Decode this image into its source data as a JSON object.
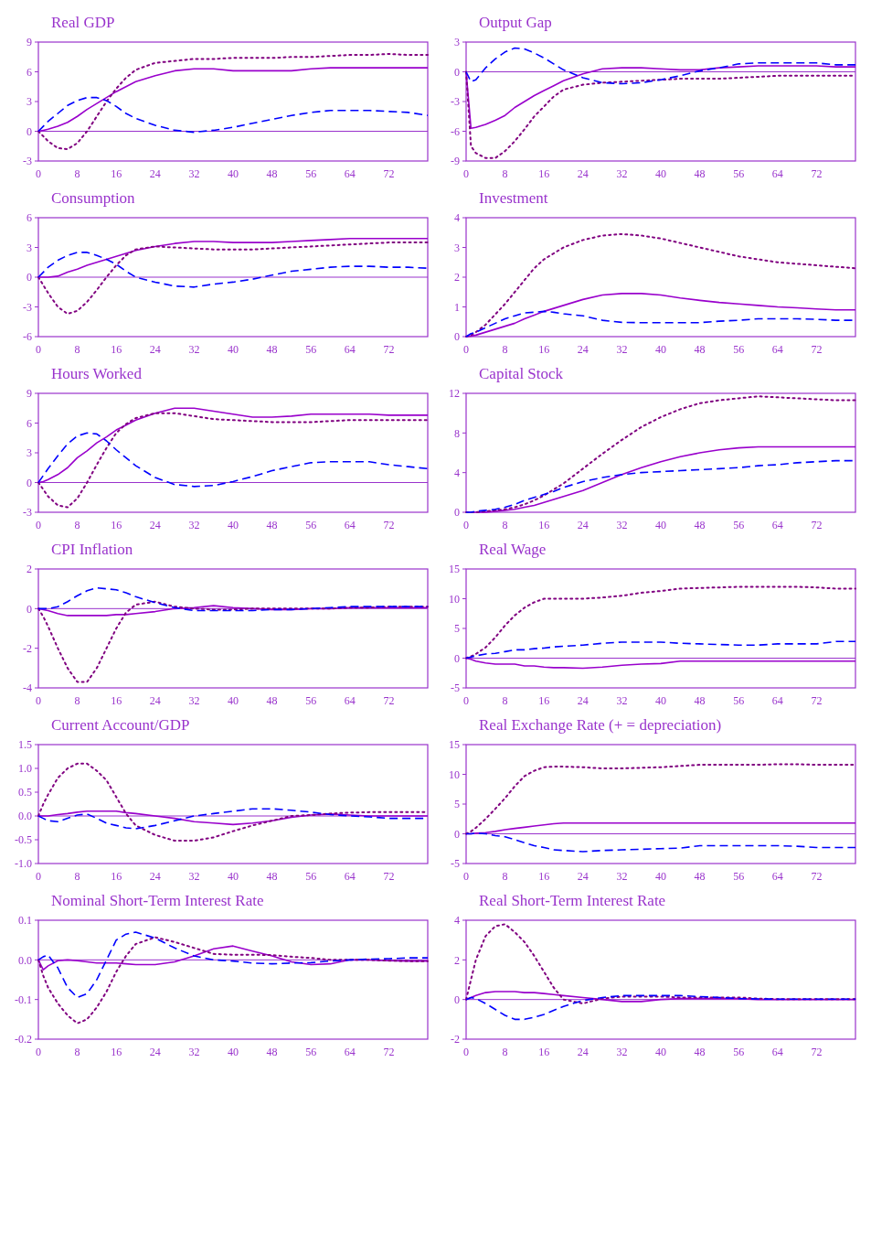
{
  "chart_data": [
    {
      "type": "line",
      "title": "Real GDP",
      "x": [
        0,
        1,
        2,
        4,
        6,
        8,
        10,
        12,
        14,
        16,
        18,
        20,
        24,
        28,
        32,
        36,
        40,
        44,
        48,
        52,
        56,
        60,
        64,
        68,
        72,
        76,
        80
      ],
      "xlim": [
        0,
        80
      ],
      "xticks": [
        0,
        8,
        16,
        24,
        32,
        40,
        48,
        56,
        64,
        72
      ],
      "ylim": [
        -3,
        9
      ],
      "yticks": [
        -3,
        0,
        3,
        6,
        9
      ],
      "ref_lines": [
        {
          "axis": "y",
          "value": 0
        }
      ],
      "series": [
        {
          "color": "#9900cc",
          "line_style": "solid",
          "values": [
            0,
            0.1,
            0.2,
            0.5,
            0.9,
            1.5,
            2.2,
            2.8,
            3.4,
            4.0,
            4.5,
            5.0,
            5.6,
            6.1,
            6.3,
            6.3,
            6.1,
            6.1,
            6.1,
            6.1,
            6.3,
            6.4,
            6.4,
            6.4,
            6.4,
            6.4,
            6.4
          ]
        },
        {
          "color": "#800080",
          "line_style": "dotted",
          "values": [
            0,
            -0.5,
            -1.0,
            -1.7,
            -1.8,
            -1.2,
            0,
            1.5,
            3.0,
            4.3,
            5.4,
            6.2,
            6.9,
            7.1,
            7.3,
            7.3,
            7.4,
            7.4,
            7.4,
            7.5,
            7.5,
            7.6,
            7.7,
            7.7,
            7.8,
            7.7,
            7.7
          ]
        },
        {
          "color": "#0000ff",
          "line_style": "dashed",
          "values": [
            0,
            0.5,
            1.0,
            1.8,
            2.6,
            3.1,
            3.4,
            3.4,
            3.1,
            2.5,
            1.8,
            1.3,
            0.6,
            0.1,
            -0.1,
            0.1,
            0.4,
            0.8,
            1.2,
            1.6,
            1.9,
            2.1,
            2.1,
            2.1,
            2.0,
            1.9,
            1.6
          ]
        }
      ]
    },
    {
      "type": "line",
      "title": "Output Gap",
      "x": [
        0,
        1,
        2,
        4,
        6,
        8,
        10,
        12,
        14,
        16,
        18,
        20,
        24,
        28,
        32,
        36,
        40,
        44,
        48,
        52,
        56,
        60,
        64,
        68,
        72,
        76,
        80
      ],
      "xlim": [
        0,
        80
      ],
      "xticks": [
        0,
        8,
        16,
        24,
        32,
        40,
        48,
        56,
        64,
        72
      ],
      "ylim": [
        -9,
        3
      ],
      "yticks": [
        -9,
        -6,
        -3,
        0,
        3
      ],
      "ref_lines": [
        {
          "axis": "y",
          "value": 0
        }
      ],
      "series": [
        {
          "color": "#9900cc",
          "line_style": "solid",
          "values": [
            0,
            -5.7,
            -5.6,
            -5.3,
            -4.9,
            -4.4,
            -3.6,
            -3.0,
            -2.4,
            -1.9,
            -1.4,
            -0.9,
            -0.2,
            0.3,
            0.4,
            0.4,
            0.3,
            0.2,
            0.2,
            0.4,
            0.5,
            0.6,
            0.6,
            0.6,
            0.6,
            0.5,
            0.5
          ]
        },
        {
          "color": "#800080",
          "line_style": "dotted",
          "values": [
            0,
            -7.5,
            -8.2,
            -8.7,
            -8.7,
            -8.0,
            -7.0,
            -5.8,
            -4.5,
            -3.5,
            -2.5,
            -1.8,
            -1.3,
            -1.1,
            -1.0,
            -0.9,
            -0.8,
            -0.7,
            -0.7,
            -0.7,
            -0.6,
            -0.5,
            -0.4,
            -0.4,
            -0.4,
            -0.4,
            -0.4
          ]
        },
        {
          "color": "#0000ff",
          "line_style": "dashed",
          "values": [
            0,
            -1.0,
            -0.8,
            0.4,
            1.3,
            2.0,
            2.4,
            2.3,
            1.9,
            1.4,
            0.8,
            0.2,
            -0.6,
            -1.1,
            -1.2,
            -1.1,
            -0.8,
            -0.4,
            0.1,
            0.4,
            0.8,
            0.9,
            0.9,
            0.9,
            0.9,
            0.7,
            0.7
          ]
        }
      ]
    },
    {
      "type": "line",
      "title": "Consumption",
      "x": [
        0,
        1,
        2,
        4,
        6,
        8,
        10,
        12,
        14,
        16,
        18,
        20,
        24,
        28,
        32,
        36,
        40,
        44,
        48,
        52,
        56,
        60,
        64,
        68,
        72,
        76,
        80
      ],
      "xlim": [
        0,
        80
      ],
      "xticks": [
        0,
        8,
        16,
        24,
        32,
        40,
        48,
        56,
        64,
        72
      ],
      "ylim": [
        -6,
        6
      ],
      "yticks": [
        -6,
        -3,
        0,
        3,
        6
      ],
      "ref_lines": [
        {
          "axis": "y",
          "value": 0
        }
      ],
      "series": [
        {
          "color": "#9900cc",
          "line_style": "solid",
          "values": [
            0,
            0,
            0,
            0.1,
            0.5,
            0.8,
            1.2,
            1.5,
            1.8,
            2.1,
            2.4,
            2.7,
            3.1,
            3.4,
            3.6,
            3.6,
            3.5,
            3.5,
            3.5,
            3.6,
            3.7,
            3.8,
            3.9,
            3.9,
            3.9,
            3.9,
            3.9
          ]
        },
        {
          "color": "#800080",
          "line_style": "dotted",
          "values": [
            0,
            -0.8,
            -1.6,
            -3.0,
            -3.7,
            -3.4,
            -2.5,
            -1.3,
            0,
            1.2,
            2.2,
            2.8,
            3.1,
            3.0,
            2.9,
            2.8,
            2.8,
            2.8,
            2.9,
            3.0,
            3.1,
            3.2,
            3.3,
            3.4,
            3.5,
            3.5,
            3.5
          ]
        },
        {
          "color": "#0000ff",
          "line_style": "dashed",
          "values": [
            0,
            0.5,
            1.0,
            1.7,
            2.2,
            2.5,
            2.5,
            2.2,
            1.8,
            1.3,
            0.6,
            0,
            -0.5,
            -0.9,
            -1.0,
            -0.7,
            -0.5,
            -0.2,
            0.2,
            0.6,
            0.8,
            1.0,
            1.1,
            1.1,
            1.0,
            1.0,
            0.9
          ]
        }
      ]
    },
    {
      "type": "line",
      "title": "Investment",
      "x": [
        0,
        1,
        2,
        4,
        6,
        8,
        10,
        12,
        14,
        16,
        18,
        20,
        24,
        28,
        32,
        36,
        40,
        44,
        48,
        52,
        56,
        60,
        64,
        68,
        72,
        76,
        80
      ],
      "xlim": [
        0,
        80
      ],
      "xticks": [
        0,
        8,
        16,
        24,
        32,
        40,
        48,
        56,
        64,
        72
      ],
      "ylim": [
        0,
        4
      ],
      "yticks": [
        0,
        1,
        2,
        3,
        4
      ],
      "series": [
        {
          "color": "#9900cc",
          "line_style": "solid",
          "values": [
            0,
            0.02,
            0.05,
            0.15,
            0.25,
            0.35,
            0.45,
            0.6,
            0.72,
            0.85,
            0.95,
            1.05,
            1.25,
            1.4,
            1.45,
            1.45,
            1.4,
            1.3,
            1.22,
            1.15,
            1.1,
            1.05,
            1.0,
            0.97,
            0.93,
            0.9,
            0.9
          ]
        },
        {
          "color": "#800080",
          "line_style": "dotted",
          "values": [
            0,
            0.05,
            0.15,
            0.4,
            0.75,
            1.1,
            1.5,
            1.9,
            2.3,
            2.6,
            2.8,
            3.0,
            3.25,
            3.4,
            3.45,
            3.4,
            3.3,
            3.15,
            3.0,
            2.85,
            2.7,
            2.6,
            2.5,
            2.45,
            2.4,
            2.35,
            2.3
          ]
        },
        {
          "color": "#0000ff",
          "line_style": "dashed",
          "values": [
            0,
            0.1,
            0.15,
            0.3,
            0.45,
            0.6,
            0.7,
            0.8,
            0.82,
            0.85,
            0.82,
            0.77,
            0.7,
            0.55,
            0.48,
            0.47,
            0.47,
            0.47,
            0.47,
            0.52,
            0.55,
            0.6,
            0.6,
            0.6,
            0.58,
            0.55,
            0.55
          ]
        }
      ]
    },
    {
      "type": "line",
      "title": "Hours Worked",
      "x": [
        0,
        1,
        2,
        4,
        6,
        8,
        10,
        12,
        14,
        16,
        18,
        20,
        24,
        28,
        32,
        36,
        40,
        44,
        48,
        52,
        56,
        60,
        64,
        68,
        72,
        76,
        80
      ],
      "xlim": [
        0,
        80
      ],
      "xticks": [
        0,
        8,
        16,
        24,
        32,
        40,
        48,
        56,
        64,
        72
      ],
      "ylim": [
        -3,
        9
      ],
      "yticks": [
        -3,
        0,
        3,
        6,
        9
      ],
      "ref_lines": [
        {
          "axis": "y",
          "value": 0
        }
      ],
      "series": [
        {
          "color": "#9900cc",
          "line_style": "solid",
          "values": [
            0,
            0.1,
            0.3,
            0.8,
            1.5,
            2.5,
            3.2,
            4.0,
            4.6,
            5.3,
            5.8,
            6.3,
            7.0,
            7.5,
            7.5,
            7.2,
            6.9,
            6.6,
            6.6,
            6.7,
            6.9,
            6.9,
            6.9,
            6.9,
            6.8,
            6.8,
            6.8
          ]
        },
        {
          "color": "#800080",
          "line_style": "dotted",
          "values": [
            0,
            -0.7,
            -1.4,
            -2.3,
            -2.5,
            -1.6,
            0,
            1.8,
            3.5,
            5.0,
            5.9,
            6.5,
            7.0,
            7.0,
            6.7,
            6.4,
            6.3,
            6.2,
            6.1,
            6.1,
            6.1,
            6.2,
            6.3,
            6.3,
            6.3,
            6.3,
            6.3
          ]
        },
        {
          "color": "#0000ff",
          "line_style": "dashed",
          "values": [
            0,
            0.7,
            1.4,
            2.7,
            3.9,
            4.7,
            5.0,
            4.9,
            4.2,
            3.3,
            2.5,
            1.7,
            0.5,
            -0.2,
            -0.4,
            -0.3,
            0.1,
            0.6,
            1.2,
            1.6,
            2.0,
            2.1,
            2.1,
            2.1,
            1.8,
            1.6,
            1.4
          ]
        }
      ]
    },
    {
      "type": "line",
      "title": "Capital Stock",
      "x": [
        0,
        1,
        2,
        4,
        6,
        8,
        10,
        12,
        14,
        16,
        18,
        20,
        24,
        28,
        32,
        36,
        40,
        44,
        48,
        52,
        56,
        60,
        64,
        68,
        72,
        76,
        80
      ],
      "xlim": [
        0,
        80
      ],
      "xticks": [
        0,
        8,
        16,
        24,
        32,
        40,
        48,
        56,
        64,
        72
      ],
      "ylim": [
        0,
        12
      ],
      "yticks": [
        0,
        4,
        8,
        12
      ],
      "series": [
        {
          "color": "#9900cc",
          "line_style": "solid",
          "values": [
            0,
            0,
            0,
            0,
            0.1,
            0.2,
            0.3,
            0.5,
            0.7,
            1.0,
            1.3,
            1.6,
            2.2,
            3.0,
            3.8,
            4.5,
            5.1,
            5.6,
            6.0,
            6.3,
            6.5,
            6.6,
            6.6,
            6.6,
            6.6,
            6.6,
            6.6
          ]
        },
        {
          "color": "#800080",
          "line_style": "dotted",
          "values": [
            0,
            0,
            0,
            0.1,
            0.2,
            0.3,
            0.5,
            0.8,
            1.2,
            1.7,
            2.3,
            2.9,
            4.4,
            5.9,
            7.3,
            8.6,
            9.6,
            10.4,
            11.0,
            11.3,
            11.5,
            11.7,
            11.6,
            11.5,
            11.4,
            11.3,
            11.3
          ]
        },
        {
          "color": "#0000ff",
          "line_style": "dashed",
          "values": [
            0,
            0,
            0.1,
            0.2,
            0.3,
            0.5,
            0.8,
            1.2,
            1.5,
            1.8,
            2.1,
            2.5,
            3.1,
            3.5,
            3.8,
            4.0,
            4.1,
            4.2,
            4.3,
            4.4,
            4.5,
            4.7,
            4.8,
            5.0,
            5.1,
            5.2,
            5.2
          ]
        }
      ]
    },
    {
      "type": "line",
      "title": "CPI Inflation",
      "x": [
        0,
        1,
        2,
        4,
        6,
        8,
        10,
        12,
        14,
        16,
        18,
        20,
        24,
        28,
        32,
        36,
        40,
        44,
        48,
        52,
        56,
        60,
        64,
        68,
        72,
        76,
        80
      ],
      "xlim": [
        0,
        80
      ],
      "xticks": [
        0,
        8,
        16,
        24,
        32,
        40,
        48,
        56,
        64,
        72
      ],
      "ylim": [
        -4,
        2
      ],
      "yticks": [
        -4,
        -2,
        0,
        2
      ],
      "ref_lines": [
        {
          "axis": "y",
          "value": 0
        }
      ],
      "series": [
        {
          "color": "#9900cc",
          "line_style": "solid",
          "values": [
            0,
            -0.05,
            -0.1,
            -0.25,
            -0.35,
            -0.35,
            -0.35,
            -0.35,
            -0.35,
            -0.3,
            -0.3,
            -0.25,
            -0.15,
            0,
            0.05,
            0.15,
            0.05,
            0,
            -0.05,
            -0.05,
            0,
            0,
            0.05,
            0.05,
            0.05,
            0.05,
            0.05
          ]
        },
        {
          "color": "#800080",
          "line_style": "dotted",
          "values": [
            0,
            -0.4,
            -0.9,
            -2.0,
            -3.0,
            -3.7,
            -3.7,
            -3.0,
            -2.0,
            -1.0,
            -0.2,
            0.2,
            0.35,
            0.1,
            0,
            -0.05,
            -0.05,
            0,
            0,
            0,
            0,
            0,
            0.05,
            0.05,
            0.1,
            0.1,
            0.1
          ]
        },
        {
          "color": "#0000ff",
          "line_style": "dashed",
          "values": [
            0,
            0,
            0,
            0.1,
            0.35,
            0.65,
            0.9,
            1.05,
            1.0,
            0.95,
            0.8,
            0.6,
            0.3,
            0.05,
            -0.1,
            -0.1,
            -0.1,
            -0.1,
            -0.05,
            -0.05,
            0,
            0.05,
            0.1,
            0.1,
            0.1,
            0.1,
            0.1
          ]
        }
      ]
    },
    {
      "type": "line",
      "title": "Real Wage",
      "x": [
        0,
        1,
        2,
        4,
        6,
        8,
        10,
        12,
        14,
        16,
        18,
        20,
        24,
        28,
        32,
        36,
        40,
        44,
        48,
        52,
        56,
        60,
        64,
        68,
        72,
        76,
        80
      ],
      "xlim": [
        0,
        80
      ],
      "xticks": [
        0,
        8,
        16,
        24,
        32,
        40,
        48,
        56,
        64,
        72
      ],
      "ylim": [
        -5,
        15
      ],
      "yticks": [
        -5,
        0,
        5,
        10,
        15
      ],
      "ref_lines": [
        {
          "axis": "y",
          "value": 0
        }
      ],
      "series": [
        {
          "color": "#9900cc",
          "line_style": "solid",
          "values": [
            0,
            -0.2,
            -0.5,
            -0.8,
            -1.0,
            -1.0,
            -1.0,
            -1.3,
            -1.3,
            -1.5,
            -1.6,
            -1.6,
            -1.7,
            -1.5,
            -1.2,
            -1.0,
            -0.9,
            -0.5,
            -0.5,
            -0.5,
            -0.5,
            -0.5,
            -0.5,
            -0.5,
            -0.5,
            -0.5,
            -0.5
          ]
        },
        {
          "color": "#800080",
          "line_style": "dotted",
          "values": [
            0,
            0.3,
            0.7,
            1.8,
            3.5,
            5.5,
            7.2,
            8.5,
            9.4,
            10.0,
            10.0,
            10.0,
            10.0,
            10.2,
            10.5,
            11.0,
            11.3,
            11.7,
            11.8,
            11.9,
            12.0,
            12.0,
            12.0,
            12.0,
            11.9,
            11.7,
            11.7
          ]
        },
        {
          "color": "#0000ff",
          "line_style": "dashed",
          "values": [
            0,
            0.2,
            0.4,
            0.7,
            0.8,
            1.1,
            1.4,
            1.4,
            1.6,
            1.7,
            1.9,
            2.0,
            2.2,
            2.5,
            2.7,
            2.7,
            2.7,
            2.5,
            2.4,
            2.3,
            2.2,
            2.2,
            2.4,
            2.4,
            2.4,
            2.8,
            2.8
          ]
        }
      ]
    },
    {
      "type": "line",
      "title": "Current Account/GDP",
      "x": [
        0,
        1,
        2,
        4,
        6,
        8,
        10,
        12,
        14,
        16,
        18,
        20,
        24,
        28,
        32,
        36,
        40,
        44,
        48,
        52,
        56,
        60,
        64,
        68,
        72,
        76,
        80
      ],
      "xlim": [
        0,
        80
      ],
      "xticks": [
        0,
        8,
        16,
        24,
        32,
        40,
        48,
        56,
        64,
        72
      ],
      "ylim": [
        -1,
        1.5
      ],
      "yticks": [
        {
          "value": -1,
          "label": "-1.0"
        },
        -0.5,
        {
          "value": 0,
          "label": "0.0"
        },
        0.5,
        {
          "value": 1,
          "label": "1.0"
        },
        1.5
      ],
      "ref_lines": [
        {
          "axis": "y",
          "value": 0
        }
      ],
      "series": [
        {
          "color": "#9900cc",
          "line_style": "solid",
          "values": [
            0,
            0,
            0,
            0.03,
            0.05,
            0.08,
            0.1,
            0.1,
            0.1,
            0.1,
            0.07,
            0.05,
            0,
            -0.05,
            -0.12,
            -0.15,
            -0.18,
            -0.15,
            -0.1,
            -0.03,
            0.02,
            0.04,
            0.02,
            0,
            0,
            0,
            0
          ]
        },
        {
          "color": "#800080",
          "line_style": "dotted",
          "values": [
            0,
            0.25,
            0.45,
            0.8,
            1.0,
            1.1,
            1.1,
            0.95,
            0.75,
            0.4,
            0.05,
            -0.2,
            -0.4,
            -0.52,
            -0.52,
            -0.45,
            -0.32,
            -0.2,
            -0.1,
            0,
            0.02,
            0.05,
            0.07,
            0.08,
            0.08,
            0.08,
            0.08
          ]
        },
        {
          "color": "#0000ff",
          "line_style": "dashed",
          "values": [
            0,
            -0.05,
            -0.1,
            -0.12,
            -0.05,
            0.02,
            0.04,
            -0.05,
            -0.15,
            -0.2,
            -0.25,
            -0.27,
            -0.2,
            -0.1,
            0,
            0.05,
            0.1,
            0.15,
            0.15,
            0.12,
            0.08,
            0.03,
            0,
            -0.02,
            -0.05,
            -0.05,
            -0.05
          ]
        }
      ]
    },
    {
      "type": "line",
      "title": "Real Exchange Rate (+ = depreciation)",
      "x": [
        0,
        1,
        2,
        4,
        6,
        8,
        10,
        12,
        14,
        16,
        18,
        20,
        24,
        28,
        32,
        36,
        40,
        44,
        48,
        52,
        56,
        60,
        64,
        68,
        72,
        76,
        80
      ],
      "xlim": [
        0,
        80
      ],
      "xticks": [
        0,
        8,
        16,
        24,
        32,
        40,
        48,
        56,
        64,
        72
      ],
      "ylim": [
        -5,
        15
      ],
      "yticks": [
        -5,
        0,
        5,
        10,
        15
      ],
      "ref_lines": [
        {
          "axis": "y",
          "value": 0
        }
      ],
      "series": [
        {
          "color": "#9900cc",
          "line_style": "solid",
          "values": [
            0,
            0,
            0.1,
            0.2,
            0.4,
            0.7,
            0.9,
            1.1,
            1.3,
            1.5,
            1.7,
            1.8,
            1.8,
            1.8,
            1.8,
            1.8,
            1.8,
            1.8,
            1.8,
            1.8,
            1.8,
            1.8,
            1.8,
            1.8,
            1.8,
            1.8,
            1.8
          ]
        },
        {
          "color": "#800080",
          "line_style": "dotted",
          "values": [
            0,
            0.4,
            1.0,
            2.5,
            4.2,
            6.0,
            8.0,
            9.7,
            10.6,
            11.2,
            11.3,
            11.3,
            11.2,
            11.0,
            11.0,
            11.1,
            11.2,
            11.4,
            11.6,
            11.6,
            11.6,
            11.6,
            11.7,
            11.7,
            11.6,
            11.6,
            11.6
          ]
        },
        {
          "color": "#0000ff",
          "line_style": "dashed",
          "values": [
            0,
            0,
            0.1,
            0,
            -0.3,
            -0.5,
            -1.0,
            -1.5,
            -2.0,
            -2.3,
            -2.7,
            -2.8,
            -3.0,
            -2.8,
            -2.7,
            -2.6,
            -2.5,
            -2.4,
            -2.0,
            -2.0,
            -2.0,
            -2.0,
            -2.0,
            -2.1,
            -2.3,
            -2.3,
            -2.3
          ]
        }
      ]
    },
    {
      "type": "line",
      "title": "Nominal Short-Term Interest Rate",
      "x": [
        0,
        1,
        2,
        4,
        6,
        8,
        10,
        12,
        14,
        16,
        18,
        20,
        24,
        28,
        32,
        36,
        40,
        44,
        48,
        52,
        56,
        60,
        64,
        68,
        72,
        76,
        80
      ],
      "xlim": [
        0,
        80
      ],
      "xticks": [
        0,
        8,
        16,
        24,
        32,
        40,
        48,
        56,
        64,
        72
      ],
      "ylim": [
        -0.2,
        0.1
      ],
      "yticks": [
        -0.2,
        -0.1,
        {
          "value": 0,
          "label": "0.0"
        },
        0.1
      ],
      "ref_lines": [
        {
          "axis": "y",
          "value": 0
        }
      ],
      "series": [
        {
          "color": "#9900cc",
          "line_style": "solid",
          "values": [
            0,
            -0.025,
            -0.015,
            -0.002,
            0,
            -0.002,
            -0.005,
            -0.008,
            -0.008,
            -0.008,
            -0.01,
            -0.012,
            -0.012,
            -0.005,
            0.01,
            0.028,
            0.035,
            0.022,
            0.01,
            -0.005,
            -0.012,
            -0.01,
            0,
            0,
            -0.002,
            -0.003,
            -0.003
          ]
        },
        {
          "color": "#800080",
          "line_style": "dotted",
          "values": [
            0,
            -0.04,
            -0.07,
            -0.11,
            -0.14,
            -0.16,
            -0.15,
            -0.12,
            -0.08,
            -0.03,
            0.01,
            0.04,
            0.057,
            0.045,
            0.03,
            0.015,
            0.013,
            0.013,
            0.012,
            0.008,
            0.005,
            0,
            0,
            0,
            -0.002,
            -0.003,
            -0.003
          ]
        },
        {
          "color": "#0000ff",
          "line_style": "dashed",
          "values": [
            0,
            0.008,
            0.012,
            -0.02,
            -0.07,
            -0.095,
            -0.085,
            -0.05,
            0,
            0.05,
            0.065,
            0.07,
            0.055,
            0.03,
            0.01,
            0,
            -0.003,
            -0.008,
            -0.01,
            -0.008,
            -0.007,
            -0.003,
            0,
            0.002,
            0.003,
            0.005,
            0.005
          ]
        }
      ]
    },
    {
      "type": "line",
      "title": "Real Short-Term Interest Rate",
      "x": [
        0,
        1,
        2,
        4,
        6,
        8,
        10,
        12,
        14,
        16,
        18,
        20,
        24,
        28,
        32,
        36,
        40,
        44,
        48,
        52,
        56,
        60,
        64,
        68,
        72,
        76,
        80
      ],
      "xlim": [
        0,
        80
      ],
      "xticks": [
        0,
        8,
        16,
        24,
        32,
        40,
        48,
        56,
        64,
        72
      ],
      "ylim": [
        -2,
        4
      ],
      "yticks": [
        -2,
        0,
        2,
        4
      ],
      "ref_lines": [
        {
          "axis": "y",
          "value": 0
        }
      ],
      "series": [
        {
          "color": "#9900cc",
          "line_style": "solid",
          "values": [
            0,
            0.1,
            0.2,
            0.35,
            0.4,
            0.4,
            0.4,
            0.35,
            0.35,
            0.3,
            0.25,
            0.2,
            0.1,
            0,
            -0.1,
            -0.1,
            0,
            0.05,
            0.05,
            0.05,
            0.05,
            0,
            0,
            0,
            0,
            0,
            0
          ]
        },
        {
          "color": "#800080",
          "line_style": "dotted",
          "values": [
            0,
            1.0,
            2.0,
            3.2,
            3.7,
            3.8,
            3.4,
            2.9,
            2.2,
            1.4,
            0.6,
            0,
            -0.2,
            0.05,
            0.15,
            0.15,
            0.15,
            0.1,
            0.1,
            0.1,
            0.1,
            0.05,
            0.02,
            0.02,
            0.02,
            0.02,
            0.02
          ]
        },
        {
          "color": "#0000ff",
          "line_style": "dashed",
          "values": [
            0,
            0.1,
            0.05,
            -0.2,
            -0.5,
            -0.8,
            -1.0,
            -1.0,
            -0.9,
            -0.75,
            -0.55,
            -0.35,
            -0.05,
            0.1,
            0.2,
            0.2,
            0.2,
            0.2,
            0.15,
            0.1,
            0.05,
            0.03,
            0.02,
            0.02,
            0.02,
            0.02,
            0.02
          ]
        }
      ]
    }
  ]
}
